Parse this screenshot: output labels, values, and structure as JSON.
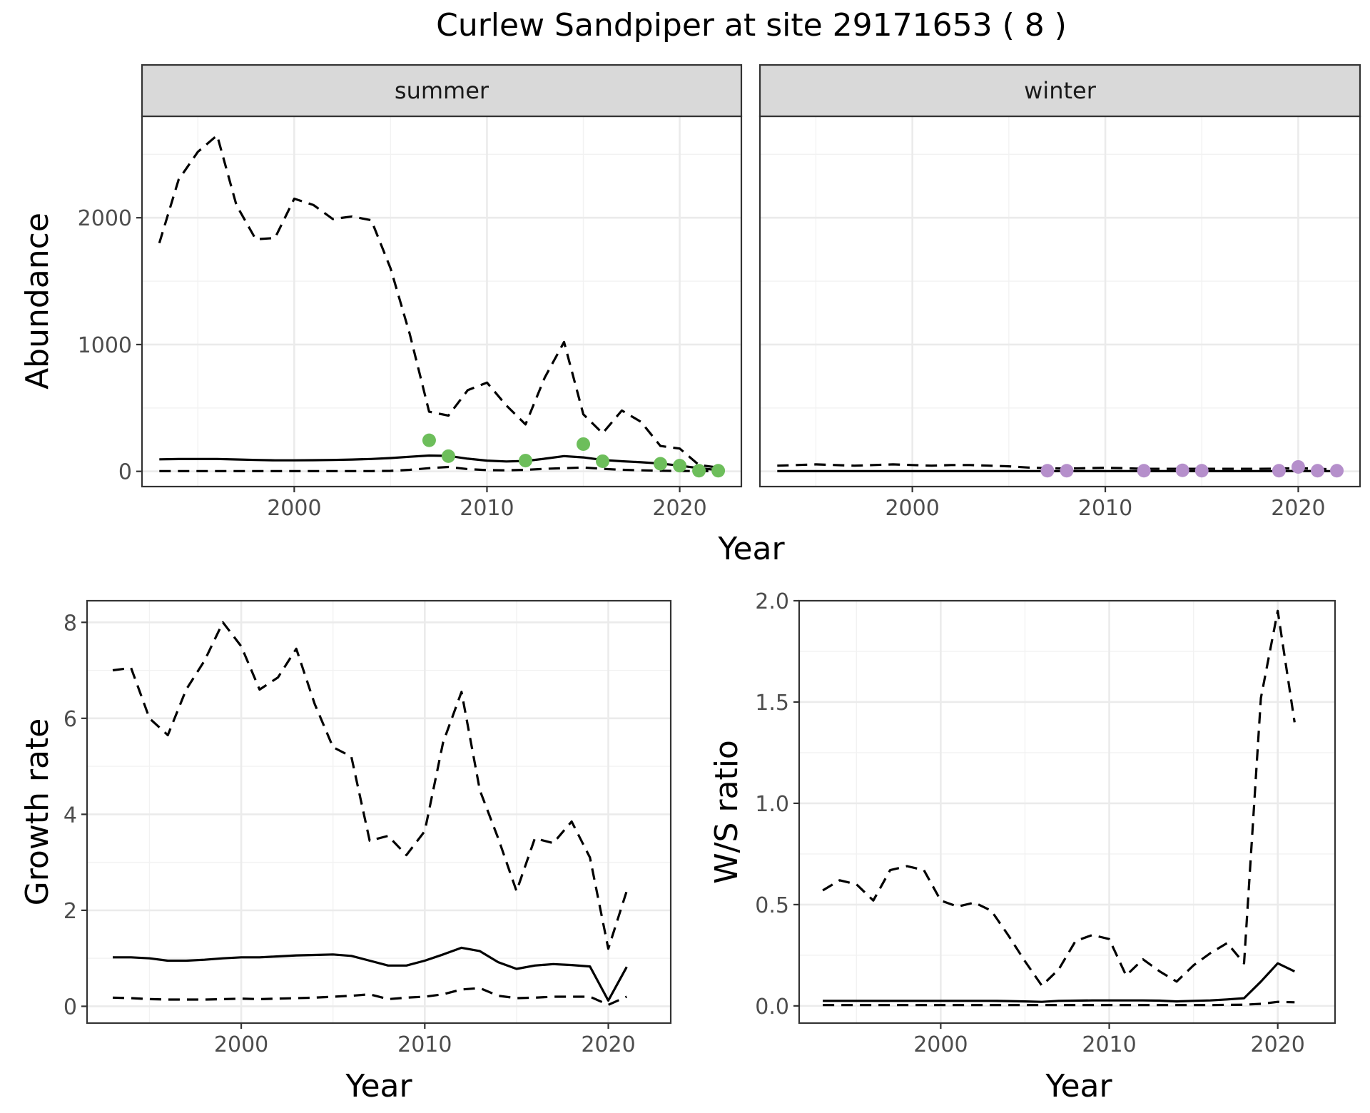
{
  "title": "Curlew Sandpiper at site 29171653 ( 8 )",
  "colors": {
    "summer_points": "#6dbe5b",
    "winter_points": "#b58fcb",
    "lines": "#000000"
  },
  "chart_data": [
    {
      "type": "line",
      "panel": "summer",
      "strip_label": "summer",
      "ylabel": "Abundance",
      "xlabel": "Year",
      "xlim": [
        1992.1,
        2023.2
      ],
      "ylim": [
        -120,
        2800
      ],
      "x_ticks": [
        2000,
        2010,
        2020
      ],
      "x_tick_labels": [
        "2000",
        "2010",
        "2020"
      ],
      "y_ticks": [
        0,
        1000,
        2000
      ],
      "y_tick_labels": [
        "0",
        "1000",
        "2000"
      ],
      "grid": true,
      "x": [
        1993,
        1994,
        1995,
        1996,
        1997,
        1998,
        1999,
        2000,
        2001,
        2002,
        2003,
        2004,
        2005,
        2006,
        2007,
        2008,
        2009,
        2010,
        2011,
        2012,
        2013,
        2014,
        2015,
        2016,
        2017,
        2018,
        2019,
        2020,
        2021,
        2022
      ],
      "series": [
        {
          "style": "solid",
          "values": [
            95,
            97,
            98,
            98,
            94,
            90,
            87,
            87,
            88,
            90,
            93,
            98,
            105,
            115,
            125,
            122,
            100,
            85,
            78,
            82,
            100,
            120,
            110,
            90,
            80,
            72,
            62,
            45,
            25,
            10
          ]
        },
        {
          "style": "dashed",
          "values": [
            1800,
            2300,
            2520,
            2650,
            2100,
            1830,
            1840,
            2150,
            2100,
            1990,
            2010,
            1980,
            1600,
            1080,
            470,
            440,
            640,
            700,
            520,
            370,
            740,
            1020,
            450,
            300,
            480,
            390,
            200,
            180,
            50,
            30
          ]
        },
        {
          "style": "dashed",
          "values": [
            2,
            2,
            2,
            2,
            2,
            2,
            2,
            2,
            2,
            2,
            2,
            2,
            4,
            12,
            25,
            35,
            18,
            10,
            8,
            12,
            20,
            25,
            30,
            20,
            12,
            8,
            5,
            3,
            2,
            2
          ]
        }
      ],
      "points": {
        "x": [
          2007,
          2008,
          2012,
          2015,
          2016,
          2019,
          2020,
          2021,
          2022
        ],
        "y": [
          245,
          120,
          85,
          215,
          80,
          60,
          45,
          5,
          5
        ]
      }
    },
    {
      "type": "line",
      "panel": "winter",
      "strip_label": "winter",
      "xlim": [
        1992.1,
        2023.2
      ],
      "ylim": [
        -120,
        2800
      ],
      "x_ticks": [
        2000,
        2010,
        2020
      ],
      "x_tick_labels": [
        "2000",
        "2010",
        "2020"
      ],
      "grid": true,
      "x": [
        1993,
        1994,
        1995,
        1996,
        1997,
        1998,
        1999,
        2000,
        2001,
        2002,
        2003,
        2004,
        2005,
        2006,
        2007,
        2008,
        2009,
        2010,
        2011,
        2012,
        2013,
        2014,
        2015,
        2016,
        2017,
        2018,
        2019,
        2020,
        2021,
        2022
      ],
      "series": [
        {
          "style": "solid",
          "values": [
            2,
            2,
            2,
            2,
            2,
            2,
            2,
            2,
            2,
            2,
            2,
            2,
            2,
            2,
            2,
            2,
            2,
            2,
            2,
            2,
            2,
            2,
            2,
            2,
            2,
            2,
            2,
            3,
            2,
            2
          ]
        },
        {
          "style": "dashed",
          "values": [
            45,
            50,
            55,
            50,
            45,
            50,
            55,
            50,
            45,
            50,
            50,
            45,
            40,
            30,
            25,
            22,
            25,
            28,
            25,
            20,
            20,
            20,
            20,
            20,
            20,
            20,
            22,
            25,
            20,
            15
          ]
        }
      ],
      "points": {
        "x": [
          2007,
          2008,
          2012,
          2014,
          2015,
          2019,
          2020,
          2021,
          2022
        ],
        "y": [
          5,
          5,
          5,
          8,
          5,
          5,
          35,
          5,
          5
        ]
      }
    },
    {
      "type": "line",
      "panel": "growth",
      "ylabel": "Growth rate",
      "xlabel": "Year",
      "xlim": [
        1991.6,
        2023.4
      ],
      "ylim": [
        -0.35,
        8.45
      ],
      "x_ticks": [
        2000,
        2010,
        2020
      ],
      "x_tick_labels": [
        "2000",
        "2010",
        "2020"
      ],
      "y_ticks": [
        0,
        2,
        4,
        6,
        8
      ],
      "y_tick_labels": [
        "0",
        "2",
        "4",
        "6",
        "8"
      ],
      "grid": true,
      "x": [
        1993,
        1994,
        1995,
        1996,
        1997,
        1998,
        1999,
        2000,
        2001,
        2002,
        2003,
        2004,
        2005,
        2006,
        2007,
        2008,
        2009,
        2010,
        2011,
        2012,
        2013,
        2014,
        2015,
        2016,
        2017,
        2018,
        2019,
        2020,
        2021
      ],
      "series": [
        {
          "style": "solid",
          "values": [
            1.02,
            1.02,
            1.0,
            0.95,
            0.95,
            0.97,
            1.0,
            1.02,
            1.02,
            1.04,
            1.06,
            1.07,
            1.08,
            1.05,
            0.95,
            0.85,
            0.85,
            0.95,
            1.08,
            1.22,
            1.15,
            0.92,
            0.78,
            0.85,
            0.88,
            0.86,
            0.83,
            0.12,
            0.82
          ]
        },
        {
          "style": "dashed",
          "values": [
            7.0,
            7.05,
            6.0,
            5.65,
            6.6,
            7.2,
            8.0,
            7.5,
            6.6,
            6.85,
            7.45,
            6.3,
            5.4,
            5.2,
            3.45,
            3.55,
            3.15,
            3.65,
            5.5,
            6.55,
            4.5,
            3.5,
            2.4,
            3.5,
            3.4,
            3.85,
            3.1,
            1.2,
            2.4
          ]
        },
        {
          "style": "dashed",
          "values": [
            0.18,
            0.17,
            0.15,
            0.14,
            0.14,
            0.14,
            0.15,
            0.16,
            0.15,
            0.16,
            0.17,
            0.18,
            0.2,
            0.22,
            0.25,
            0.15,
            0.18,
            0.2,
            0.25,
            0.35,
            0.38,
            0.22,
            0.17,
            0.18,
            0.2,
            0.2,
            0.2,
            0.03,
            0.2
          ]
        }
      ]
    },
    {
      "type": "line",
      "panel": "ratio",
      "ylabel": "W/S ratio",
      "xlabel": "Year",
      "xlim": [
        1991.6,
        2023.4
      ],
      "ylim": [
        -0.085,
        2.0
      ],
      "x_ticks": [
        2000,
        2010,
        2020
      ],
      "x_tick_labels": [
        "2000",
        "2010",
        "2020"
      ],
      "y_ticks": [
        0.0,
        0.5,
        1.0,
        1.5,
        2.0
      ],
      "y_tick_labels": [
        "0.0",
        "0.5",
        "1.0",
        "1.5",
        "2.0"
      ],
      "grid": true,
      "x": [
        1993,
        1994,
        1995,
        1996,
        1997,
        1998,
        1999,
        2000,
        2001,
        2002,
        2003,
        2004,
        2005,
        2006,
        2007,
        2008,
        2009,
        2010,
        2011,
        2012,
        2013,
        2014,
        2015,
        2016,
        2017,
        2018,
        2019,
        2020,
        2021
      ],
      "series": [
        {
          "style": "solid",
          "values": [
            0.025,
            0.025,
            0.025,
            0.025,
            0.025,
            0.025,
            0.025,
            0.025,
            0.025,
            0.025,
            0.025,
            0.024,
            0.022,
            0.02,
            0.025,
            0.026,
            0.027,
            0.027,
            0.027,
            0.027,
            0.026,
            0.022,
            0.025,
            0.027,
            0.032,
            0.038,
            0.12,
            0.21,
            0.17
          ]
        },
        {
          "style": "dashed",
          "values": [
            0.57,
            0.62,
            0.6,
            0.52,
            0.67,
            0.69,
            0.67,
            0.52,
            0.49,
            0.51,
            0.47,
            0.35,
            0.22,
            0.1,
            0.18,
            0.32,
            0.35,
            0.33,
            0.15,
            0.23,
            0.17,
            0.12,
            0.2,
            0.26,
            0.31,
            0.21,
            1.52,
            1.95,
            1.4
          ]
        },
        {
          "style": "dashed",
          "values": [
            0.004,
            0.004,
            0.004,
            0.004,
            0.004,
            0.004,
            0.004,
            0.004,
            0.004,
            0.004,
            0.004,
            0.004,
            0.004,
            0.004,
            0.004,
            0.004,
            0.004,
            0.004,
            0.004,
            0.004,
            0.004,
            0.004,
            0.004,
            0.004,
            0.005,
            0.006,
            0.01,
            0.02,
            0.018
          ]
        }
      ]
    }
  ]
}
